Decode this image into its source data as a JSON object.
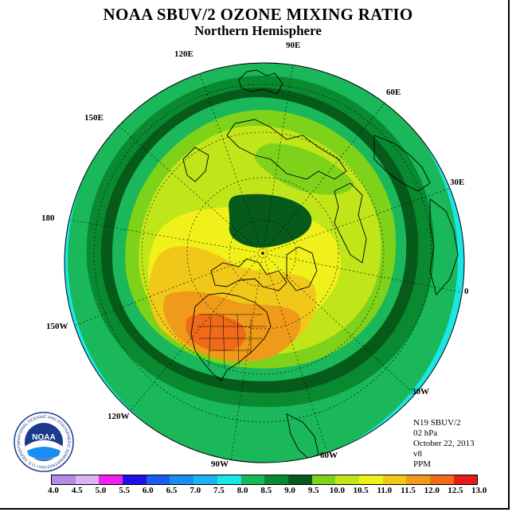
{
  "title": "NOAA SBUV/2 OZONE MIXING RATIO",
  "subtitle": "Northern Hemisphere",
  "longitude_labels": {
    "lon_90e": "90E",
    "lon_120e": "120E",
    "lon_60e": "60E",
    "lon_150e": "150E",
    "lon_30e": "30E",
    "lon_180": "180",
    "lon_0": "0",
    "lon_150w": "150W",
    "lon_30w": "30W",
    "lon_120w": "120W",
    "lon_60w": "60W",
    "lon_90w": "90W"
  },
  "info": {
    "instrument": "N19 SBUV/2",
    "pressure": "02 hPa",
    "date": "October 22, 2013",
    "version": "v8",
    "units": "PPM"
  },
  "colorbar": {
    "ticks": [
      "4.0",
      "4.5",
      "5.0",
      "5.5",
      "6.0",
      "6.5",
      "7.0",
      "7.5",
      "8.0",
      "8.5",
      "9.0",
      "9.5",
      "10.0",
      "10.5",
      "11.0",
      "11.5",
      "12.0",
      "12.5",
      "13.0"
    ],
    "colors": [
      "#b48be6",
      "#d7b5f2",
      "#f020f0",
      "#2010e8",
      "#1a5ef0",
      "#1a8ef0",
      "#1ab4f0",
      "#1ae6e6",
      "#1ab85a",
      "#0a8a30",
      "#065a1a",
      "#7ed21a",
      "#c0e61a",
      "#f0f01a",
      "#f0c81a",
      "#f09a1a",
      "#f06a1a",
      "#e61a1a",
      "#8c4a2a"
    ]
  },
  "logo": {
    "name": "NOAA",
    "ring_text": "NATIONAL OCEANIC AND ATMOSPHERIC ADMINISTRATION • U.S. DEPARTMENT OF COMMERCE"
  }
}
